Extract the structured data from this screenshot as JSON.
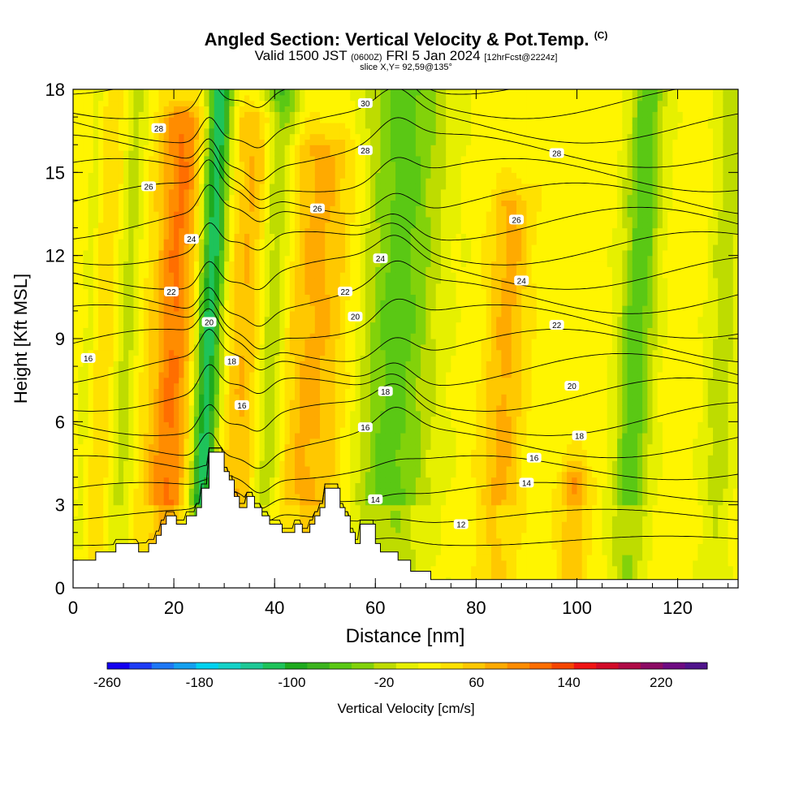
{
  "header": {
    "title": "Angled Section: Vertical Velocity & Pot.Temp.",
    "copyright_mark": "(C)",
    "valid_prefix": "Valid 1500 JST",
    "valid_utc": "(0600Z)",
    "valid_suffix": "FRI 5 Jan 2024",
    "forecast_info": "[12hrFcst@2224z]",
    "slice_info": "slice X,Y= 92,59@135°"
  },
  "colorbar": {
    "title": "Vertical Velocity [cm/s]",
    "tick_labels": [
      "-260",
      "-180",
      "-100",
      "-20",
      "60",
      "140",
      "220"
    ],
    "colors": [
      "#1400f0",
      "#1e3cf5",
      "#1e78f5",
      "#14a0f0",
      "#00d2f0",
      "#14d2c8",
      "#1ec896",
      "#1ec35a",
      "#1eaa1e",
      "#3cb41e",
      "#5ac814",
      "#82d20a",
      "#bedc00",
      "#e6f000",
      "#fff500",
      "#ffe100",
      "#ffc800",
      "#ffaa00",
      "#ff8c00",
      "#ff6e00",
      "#f54600",
      "#f01414",
      "#d20a28",
      "#af0a46",
      "#8c0a64",
      "#6e0a82",
      "#50148c"
    ]
  },
  "chart_data": {
    "type": "heatmap",
    "title": "Angled Section: Vertical Velocity & Pot.Temp.",
    "xlabel": "Distance [nm]",
    "ylabel": "Height [Kft MSL]",
    "xlim": [
      0,
      132
    ],
    "ylim": [
      0,
      18
    ],
    "x_ticks": [
      "0",
      "20",
      "40",
      "60",
      "80",
      "100",
      "120"
    ],
    "y_ticks": [
      "0",
      "3",
      "6",
      "9",
      "12",
      "15",
      "18"
    ],
    "fill_variable": "Vertical Velocity [cm/s]",
    "fill_range": [
      -260,
      260
    ],
    "contour_variable": "Potential Temperature",
    "contour_levels": [
      11,
      12,
      13,
      14,
      15,
      16,
      17,
      18,
      19,
      20,
      21,
      22,
      23,
      24,
      25,
      26,
      27,
      28,
      29,
      30
    ],
    "terrain_profile": [
      [
        0,
        1.0
      ],
      [
        4.5,
        1.0
      ],
      [
        4.5,
        1.3
      ],
      [
        8.5,
        1.3
      ],
      [
        8.5,
        1.6
      ],
      [
        13,
        1.6
      ],
      [
        13,
        1.3
      ],
      [
        15,
        1.3
      ],
      [
        15,
        1.6
      ],
      [
        16.5,
        1.6
      ],
      [
        16.5,
        1.9
      ],
      [
        17.5,
        1.9
      ],
      [
        17.5,
        2.3
      ],
      [
        18.5,
        2.3
      ],
      [
        18.5,
        2.6
      ],
      [
        20.5,
        2.6
      ],
      [
        20.5,
        2.3
      ],
      [
        22.5,
        2.3
      ],
      [
        22.5,
        2.6
      ],
      [
        24.5,
        2.6
      ],
      [
        24.5,
        2.9
      ],
      [
        25.5,
        2.9
      ],
      [
        25.5,
        3.6
      ],
      [
        27,
        3.6
      ],
      [
        27,
        4.9
      ],
      [
        30,
        4.9
      ],
      [
        30,
        4.2
      ],
      [
        31,
        4.2
      ],
      [
        31,
        3.9
      ],
      [
        32,
        3.9
      ],
      [
        32,
        3.3
      ],
      [
        33,
        3.3
      ],
      [
        33,
        2.9
      ],
      [
        34.5,
        2.9
      ],
      [
        34.5,
        3.3
      ],
      [
        36,
        3.3
      ],
      [
        36,
        2.9
      ],
      [
        37.5,
        2.9
      ],
      [
        37.5,
        2.6
      ],
      [
        39,
        2.6
      ],
      [
        39,
        2.3
      ],
      [
        41.5,
        2.3
      ],
      [
        41.5,
        2.0
      ],
      [
        44,
        2.0
      ],
      [
        44,
        2.3
      ],
      [
        45.5,
        2.3
      ],
      [
        45.5,
        2.0
      ],
      [
        47,
        2.0
      ],
      [
        47,
        2.3
      ],
      [
        48,
        2.3
      ],
      [
        48,
        2.6
      ],
      [
        49,
        2.6
      ],
      [
        49,
        2.9
      ],
      [
        50,
        2.9
      ],
      [
        50,
        3.6
      ],
      [
        53,
        3.6
      ],
      [
        53,
        2.9
      ],
      [
        54,
        2.9
      ],
      [
        54,
        2.6
      ],
      [
        55,
        2.6
      ],
      [
        55,
        2.0
      ],
      [
        56,
        2.0
      ],
      [
        56,
        1.6
      ],
      [
        57,
        1.6
      ],
      [
        57,
        2.3
      ],
      [
        60,
        2.3
      ],
      [
        60,
        1.6
      ],
      [
        61,
        1.6
      ],
      [
        61,
        1.3
      ],
      [
        64.5,
        1.3
      ],
      [
        64.5,
        1.0
      ],
      [
        67,
        1.0
      ],
      [
        67,
        0.6
      ],
      [
        71,
        0.6
      ],
      [
        71,
        0.3
      ],
      [
        132,
        0.3
      ]
    ],
    "updraft_bands": [
      {
        "x": 20,
        "width": 4,
        "strength": 90,
        "top": 17
      },
      {
        "x": 36,
        "width": 5,
        "strength": 70,
        "top": 17
      },
      {
        "x": 48,
        "width": 8,
        "strength": 55,
        "top": 16
      },
      {
        "x": 86,
        "width": 4,
        "strength": 55,
        "top": 14
      },
      {
        "x": 101,
        "width": 3,
        "strength": 70,
        "top": 4
      },
      {
        "x": 8,
        "width": 6,
        "strength": 30,
        "top": 18
      }
    ],
    "downdraft_bands": [
      {
        "x": 27,
        "width": 2.5,
        "strength": -140,
        "top": 18
      },
      {
        "x": 39,
        "width": 3.5,
        "strength": -100,
        "top": 18
      },
      {
        "x": 64,
        "width": 8,
        "strength": -75,
        "top": 18
      },
      {
        "x": 112,
        "width": 3.5,
        "strength": -80,
        "top": 18
      },
      {
        "x": 10.5,
        "width": 2.5,
        "strength": -60,
        "top": 18
      },
      {
        "x": 3,
        "width": 1.5,
        "strength": -30,
        "top": 18
      },
      {
        "x": 129,
        "width": 3,
        "strength": -40,
        "top": 18
      }
    ],
    "contour_labels": [
      {
        "text": "30",
        "x": 58,
        "y": 17.5
      },
      {
        "text": "28",
        "x": 17,
        "y": 16.6
      },
      {
        "text": "28",
        "x": 58,
        "y": 15.8
      },
      {
        "text": "28",
        "x": 96,
        "y": 15.7
      },
      {
        "text": "26",
        "x": 15,
        "y": 14.5
      },
      {
        "text": "26",
        "x": 48.5,
        "y": 13.7
      },
      {
        "text": "26",
        "x": 88,
        "y": 13.3
      },
      {
        "text": "24",
        "x": 23.5,
        "y": 12.6
      },
      {
        "text": "24",
        "x": 61,
        "y": 11.9
      },
      {
        "text": "24",
        "x": 89,
        "y": 11.1
      },
      {
        "text": "22",
        "x": 19.5,
        "y": 10.7
      },
      {
        "text": "22",
        "x": 54,
        "y": 10.7
      },
      {
        "text": "22",
        "x": 96,
        "y": 9.5
      },
      {
        "text": "20",
        "x": 27,
        "y": 9.6
      },
      {
        "text": "20",
        "x": 56,
        "y": 9.8
      },
      {
        "text": "20",
        "x": 99,
        "y": 7.3
      },
      {
        "text": "18",
        "x": 31.5,
        "y": 8.2
      },
      {
        "text": "18",
        "x": 62,
        "y": 7.1
      },
      {
        "text": "18",
        "x": 100.5,
        "y": 5.5
      },
      {
        "text": "16",
        "x": 3,
        "y": 8.3
      },
      {
        "text": "16",
        "x": 33.5,
        "y": 6.6
      },
      {
        "text": "16",
        "x": 58,
        "y": 5.8
      },
      {
        "text": "16",
        "x": 91.5,
        "y": 4.7
      },
      {
        "text": "14",
        "x": 60,
        "y": 3.2
      },
      {
        "text": "14",
        "x": 90,
        "y": 3.8
      },
      {
        "text": "12",
        "x": 77,
        "y": 2.3
      }
    ]
  }
}
